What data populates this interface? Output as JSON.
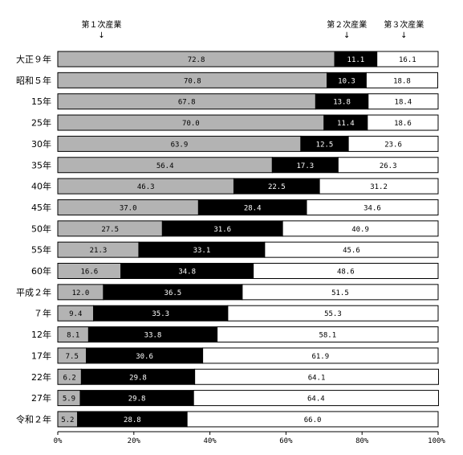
{
  "chart_data": {
    "type": "bar",
    "orientation": "horizontal",
    "stacked": true,
    "categories": [
      "大正９年",
      "昭和５年",
      "15年",
      "25年",
      "30年",
      "35年",
      "40年",
      "45年",
      "50年",
      "55年",
      "60年",
      "平成２年",
      "７年",
      "12年",
      "17年",
      "22年",
      "27年",
      "令和２年"
    ],
    "series": [
      {
        "name": "第１次産業",
        "color": "#b3b3b3",
        "label_color": "#000000",
        "values": [
          72.8,
          70.8,
          67.8,
          70.0,
          63.9,
          56.4,
          46.3,
          37.0,
          27.5,
          21.3,
          16.6,
          12.0,
          9.4,
          8.1,
          7.5,
          6.2,
          5.9,
          5.2
        ],
        "labels": [
          "72.8",
          "70.8",
          "67.8",
          "70.0",
          "63.9",
          "56.4",
          "46.3",
          "37.0",
          "27.5",
          "21.3",
          "16.6",
          "12.0",
          "9.4",
          "8.1",
          "7.5",
          "6.2",
          "5.9",
          "5.2"
        ]
      },
      {
        "name": "第２次産業",
        "color": "#000000",
        "label_color": "#ffffff",
        "values": [
          11.1,
          10.3,
          13.8,
          11.4,
          12.5,
          17.3,
          22.5,
          28.4,
          31.6,
          33.1,
          34.8,
          36.5,
          35.3,
          33.8,
          30.6,
          29.8,
          29.8,
          28.8
        ],
        "labels": [
          "11.1",
          "10.3",
          "13.8",
          "11.4",
          "12.5",
          "17.3",
          "22.5",
          "28.4",
          "31.6",
          "33.1",
          "34.8",
          "36.5",
          "35.3",
          "33.8",
          "30.6",
          "29.8",
          "29.8",
          "28.8"
        ]
      },
      {
        "name": "第３次産業",
        "color": "#ffffff",
        "label_color": "#000000",
        "values": [
          16.1,
          18.8,
          18.4,
          18.6,
          23.6,
          26.3,
          31.2,
          34.6,
          40.9,
          45.6,
          48.6,
          51.5,
          55.3,
          58.1,
          61.9,
          64.1,
          64.4,
          66.0
        ],
        "labels": [
          "16.1",
          "18.8",
          "18.4",
          "18.6",
          "23.6",
          "26.3",
          "31.2",
          "34.6",
          "40.9",
          "45.6",
          "48.6",
          "51.5",
          "55.3",
          "58.1",
          "61.9",
          "64.1",
          "64.4",
          "66.0"
        ]
      }
    ],
    "xlim": [
      0,
      100
    ],
    "ticks": [
      "0%",
      "20%",
      "40%",
      "60%",
      "80%",
      "100%"
    ],
    "legend": [
      {
        "label": "第１次産業",
        "arrow": "↓"
      },
      {
        "label": "第２次産業",
        "arrow": "↓"
      },
      {
        "label": "第３次産業",
        "arrow": "↓"
      }
    ],
    "legend_placement": "top",
    "grid": false
  }
}
